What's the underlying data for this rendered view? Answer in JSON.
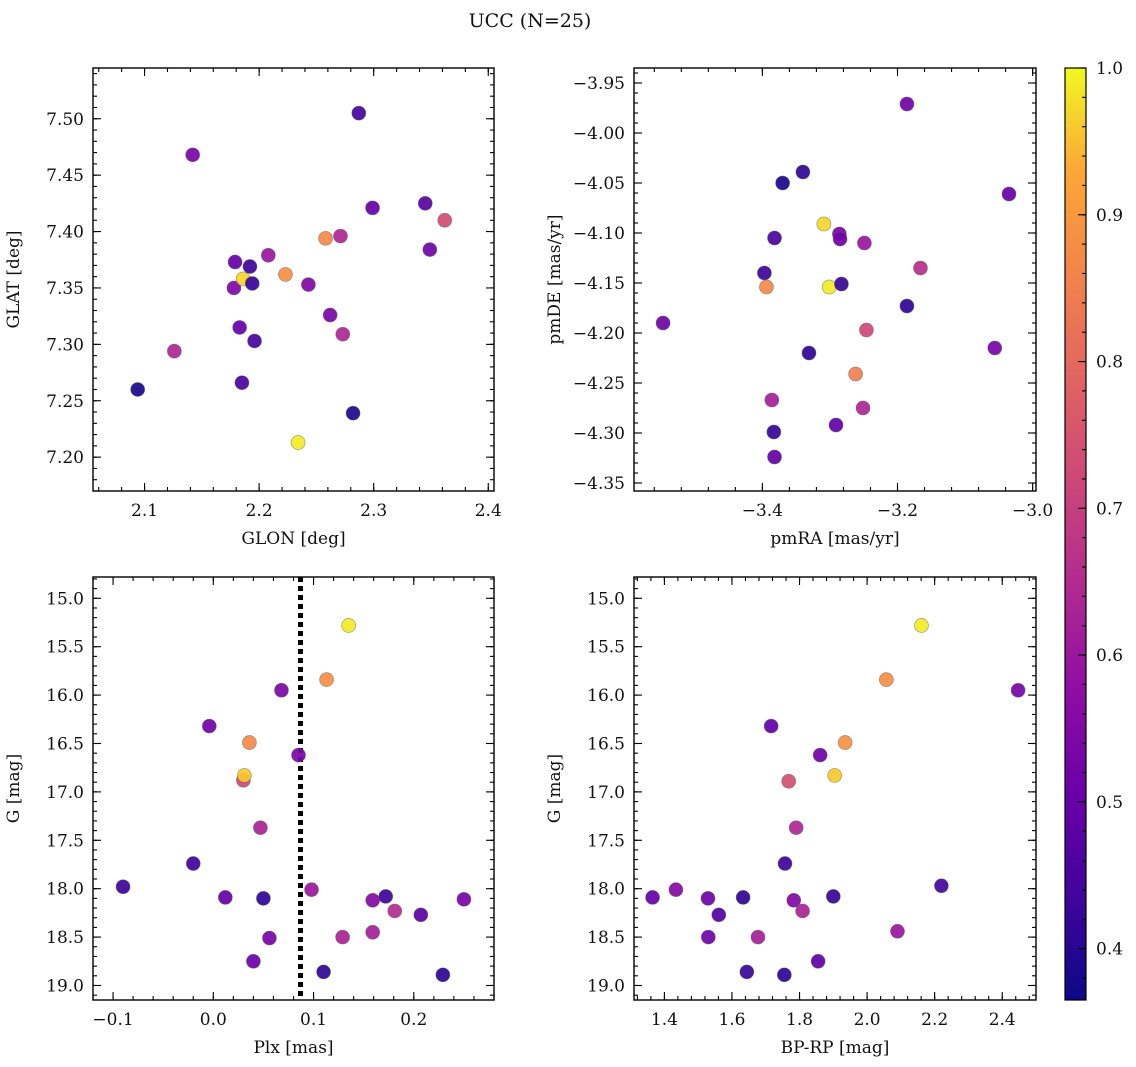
{
  "figure": {
    "title": "UCC (N=25)",
    "colorbar": {
      "colormap": "plasma",
      "range": [
        0.365,
        1.0
      ],
      "ticks": [
        0.4,
        0.5,
        0.6,
        0.7,
        0.8,
        0.9,
        1.0
      ],
      "tick_labels": [
        "0.4",
        "0.5",
        "0.6",
        "0.7",
        "0.8",
        "0.9",
        "1.0"
      ]
    }
  },
  "chart_data": [
    {
      "type": "scatter",
      "panel": "top-left",
      "xlabel": "GLON [deg]",
      "ylabel": "GLAT [deg]",
      "xlim": [
        2.055,
        2.405
      ],
      "ylim": [
        7.17,
        7.545
      ],
      "y_inverted": false,
      "xticks": [
        2.1,
        2.2,
        2.3,
        2.4
      ],
      "xtick_labels": [
        "2.1",
        "2.2",
        "2.3",
        "2.4"
      ],
      "yticks": [
        7.2,
        7.25,
        7.3,
        7.35,
        7.4,
        7.45,
        7.5
      ],
      "ytick_labels": [
        "7.20",
        "7.25",
        "7.30",
        "7.35",
        "7.40",
        "7.45",
        "7.50"
      ],
      "points": [
        {
          "x": 2.094,
          "y": 7.26,
          "c": 0.38
        },
        {
          "x": 2.126,
          "y": 7.294,
          "c": 0.64
        },
        {
          "x": 2.142,
          "y": 7.468,
          "c": 0.53
        },
        {
          "x": 2.178,
          "y": 7.35,
          "c": 0.55
        },
        {
          "x": 2.179,
          "y": 7.373,
          "c": 0.5
        },
        {
          "x": 2.183,
          "y": 7.315,
          "c": 0.5
        },
        {
          "x": 2.185,
          "y": 7.266,
          "c": 0.45
        },
        {
          "x": 2.186,
          "y": 7.358,
          "c": 0.97
        },
        {
          "x": 2.192,
          "y": 7.369,
          "c": 0.43
        },
        {
          "x": 2.194,
          "y": 7.354,
          "c": 0.42
        },
        {
          "x": 2.196,
          "y": 7.303,
          "c": 0.45
        },
        {
          "x": 2.208,
          "y": 7.379,
          "c": 0.6
        },
        {
          "x": 2.223,
          "y": 7.362,
          "c": 0.88
        },
        {
          "x": 2.234,
          "y": 7.213,
          "c": 0.99
        },
        {
          "x": 2.243,
          "y": 7.353,
          "c": 0.55
        },
        {
          "x": 2.258,
          "y": 7.394,
          "c": 0.87
        },
        {
          "x": 2.262,
          "y": 7.326,
          "c": 0.53
        },
        {
          "x": 2.271,
          "y": 7.396,
          "c": 0.64
        },
        {
          "x": 2.273,
          "y": 7.309,
          "c": 0.64
        },
        {
          "x": 2.282,
          "y": 7.239,
          "c": 0.39
        },
        {
          "x": 2.287,
          "y": 7.505,
          "c": 0.44
        },
        {
          "x": 2.299,
          "y": 7.421,
          "c": 0.5
        },
        {
          "x": 2.345,
          "y": 7.425,
          "c": 0.48
        },
        {
          "x": 2.349,
          "y": 7.384,
          "c": 0.52
        },
        {
          "x": 2.362,
          "y": 7.41,
          "c": 0.73
        }
      ]
    },
    {
      "type": "scatter",
      "panel": "top-right",
      "xlabel": "pmRA [mas/yr]",
      "ylabel": "pmDE [mas/yr]",
      "xlim": [
        -3.59,
        -2.995
      ],
      "ylim": [
        -4.358,
        -3.935
      ],
      "y_inverted": false,
      "xticks": [
        -3.4,
        -3.2,
        -3.0
      ],
      "xtick_labels": [
        "−3.4",
        "−3.2",
        "−3.0"
      ],
      "yticks": [
        -4.35,
        -4.3,
        -4.25,
        -4.2,
        -4.15,
        -4.1,
        -4.05,
        -4.0,
        -3.95
      ],
      "ytick_labels": [
        "−4.35",
        "−4.30",
        "−4.25",
        "−4.20",
        "−4.15",
        "−4.10",
        "−4.05",
        "−4.00",
        "−3.95"
      ],
      "points": [
        {
          "x": -3.547,
          "y": -4.19,
          "c": 0.52
        },
        {
          "x": -3.397,
          "y": -4.14,
          "c": 0.43
        },
        {
          "x": -3.394,
          "y": -4.154,
          "c": 0.87
        },
        {
          "x": -3.386,
          "y": -4.267,
          "c": 0.62
        },
        {
          "x": -3.383,
          "y": -4.299,
          "c": 0.42
        },
        {
          "x": -3.382,
          "y": -4.105,
          "c": 0.45
        },
        {
          "x": -3.382,
          "y": -4.324,
          "c": 0.5
        },
        {
          "x": -3.37,
          "y": -4.05,
          "c": 0.38
        },
        {
          "x": -3.34,
          "y": -4.039,
          "c": 0.41
        },
        {
          "x": -3.331,
          "y": -4.22,
          "c": 0.41
        },
        {
          "x": -3.309,
          "y": -4.091,
          "c": 0.97
        },
        {
          "x": -3.301,
          "y": -4.154,
          "c": 0.99
        },
        {
          "x": -3.291,
          "y": -4.292,
          "c": 0.49
        },
        {
          "x": -3.286,
          "y": -4.101,
          "c": 0.53
        },
        {
          "x": -3.285,
          "y": -4.106,
          "c": 0.52
        },
        {
          "x": -3.283,
          "y": -4.151,
          "c": 0.42
        },
        {
          "x": -3.262,
          "y": -4.241,
          "c": 0.85
        },
        {
          "x": -3.251,
          "y": -4.275,
          "c": 0.64
        },
        {
          "x": -3.249,
          "y": -4.11,
          "c": 0.6
        },
        {
          "x": -3.246,
          "y": -4.197,
          "c": 0.72
        },
        {
          "x": -3.186,
          "y": -3.971,
          "c": 0.52
        },
        {
          "x": -3.186,
          "y": -4.173,
          "c": 0.41
        },
        {
          "x": -3.166,
          "y": -4.135,
          "c": 0.66
        },
        {
          "x": -3.056,
          "y": -4.215,
          "c": 0.53
        },
        {
          "x": -3.035,
          "y": -4.061,
          "c": 0.5
        }
      ]
    },
    {
      "type": "scatter",
      "panel": "bottom-left",
      "xlabel": "Plx [mas]",
      "ylabel": "G [mag]",
      "xlim": [
        -0.12,
        0.28
      ],
      "ylim": [
        19.15,
        14.78
      ],
      "y_inverted": true,
      "xticks": [
        -0.1,
        0.0,
        0.1,
        0.2
      ],
      "xtick_labels": [
        "−0.1",
        "0.0",
        "0.1",
        "0.2"
      ],
      "yticks": [
        15.0,
        15.5,
        16.0,
        16.5,
        17.0,
        17.5,
        18.0,
        18.5,
        19.0
      ],
      "ytick_labels": [
        "15.0",
        "15.5",
        "16.0",
        "16.5",
        "17.0",
        "17.5",
        "18.0",
        "18.5",
        "19.0"
      ],
      "vline": {
        "x": 0.087,
        "style": "dotted",
        "color": "#000000"
      },
      "points": [
        {
          "x": -0.09,
          "y": 17.98,
          "c": 0.43
        },
        {
          "x": -0.02,
          "y": 17.74,
          "c": 0.43
        },
        {
          "x": -0.004,
          "y": 16.32,
          "c": 0.52
        },
        {
          "x": 0.012,
          "y": 18.09,
          "c": 0.5
        },
        {
          "x": 0.03,
          "y": 16.88,
          "c": 0.72
        },
        {
          "x": 0.031,
          "y": 16.83,
          "c": 0.96
        },
        {
          "x": 0.036,
          "y": 16.49,
          "c": 0.87
        },
        {
          "x": 0.04,
          "y": 18.75,
          "c": 0.51
        },
        {
          "x": 0.047,
          "y": 17.37,
          "c": 0.63
        },
        {
          "x": 0.05,
          "y": 18.1,
          "c": 0.41
        },
        {
          "x": 0.056,
          "y": 18.51,
          "c": 0.53
        },
        {
          "x": 0.068,
          "y": 15.95,
          "c": 0.54
        },
        {
          "x": 0.085,
          "y": 16.62,
          "c": 0.54
        },
        {
          "x": 0.098,
          "y": 18.01,
          "c": 0.6
        },
        {
          "x": 0.11,
          "y": 18.86,
          "c": 0.41
        },
        {
          "x": 0.113,
          "y": 15.84,
          "c": 0.88
        },
        {
          "x": 0.129,
          "y": 18.5,
          "c": 0.63
        },
        {
          "x": 0.135,
          "y": 15.28,
          "c": 0.99
        },
        {
          "x": 0.159,
          "y": 18.12,
          "c": 0.56
        },
        {
          "x": 0.159,
          "y": 18.45,
          "c": 0.62
        },
        {
          "x": 0.172,
          "y": 18.08,
          "c": 0.43
        },
        {
          "x": 0.181,
          "y": 18.23,
          "c": 0.65
        },
        {
          "x": 0.207,
          "y": 18.27,
          "c": 0.48
        },
        {
          "x": 0.229,
          "y": 18.89,
          "c": 0.41
        },
        {
          "x": 0.25,
          "y": 18.11,
          "c": 0.53
        }
      ]
    },
    {
      "type": "scatter",
      "panel": "bottom-right",
      "xlabel": "BP-RP [mag]",
      "ylabel": "G [mag]",
      "xlim": [
        1.31,
        2.5
      ],
      "ylim": [
        19.15,
        14.78
      ],
      "y_inverted": true,
      "xticks": [
        1.4,
        1.6,
        1.8,
        2.0,
        2.2,
        2.4
      ],
      "xtick_labels": [
        "1.4",
        "1.6",
        "1.8",
        "2.0",
        "2.2",
        "2.4"
      ],
      "yticks": [
        15.0,
        15.5,
        16.0,
        16.5,
        17.0,
        17.5,
        18.0,
        18.5,
        19.0
      ],
      "ytick_labels": [
        "15.0",
        "15.5",
        "16.0",
        "16.5",
        "17.0",
        "17.5",
        "18.0",
        "18.5",
        "19.0"
      ],
      "points": [
        {
          "x": 1.365,
          "y": 18.09,
          "c": 0.5
        },
        {
          "x": 1.434,
          "y": 18.01,
          "c": 0.56
        },
        {
          "x": 1.529,
          "y": 18.1,
          "c": 0.52
        },
        {
          "x": 1.53,
          "y": 18.5,
          "c": 0.52
        },
        {
          "x": 1.561,
          "y": 18.27,
          "c": 0.47
        },
        {
          "x": 1.633,
          "y": 18.09,
          "c": 0.41
        },
        {
          "x": 1.644,
          "y": 18.86,
          "c": 0.42
        },
        {
          "x": 1.677,
          "y": 18.5,
          "c": 0.62
        },
        {
          "x": 1.716,
          "y": 16.32,
          "c": 0.49
        },
        {
          "x": 1.755,
          "y": 18.89,
          "c": 0.41
        },
        {
          "x": 1.757,
          "y": 17.74,
          "c": 0.43
        },
        {
          "x": 1.768,
          "y": 16.89,
          "c": 0.74
        },
        {
          "x": 1.783,
          "y": 18.12,
          "c": 0.55
        },
        {
          "x": 1.79,
          "y": 17.37,
          "c": 0.64
        },
        {
          "x": 1.809,
          "y": 18.23,
          "c": 0.63
        },
        {
          "x": 1.855,
          "y": 18.75,
          "c": 0.49
        },
        {
          "x": 1.861,
          "y": 16.62,
          "c": 0.52
        },
        {
          "x": 1.9,
          "y": 18.08,
          "c": 0.42
        },
        {
          "x": 1.904,
          "y": 16.83,
          "c": 0.96
        },
        {
          "x": 1.935,
          "y": 16.49,
          "c": 0.89
        },
        {
          "x": 2.057,
          "y": 15.84,
          "c": 0.88
        },
        {
          "x": 2.09,
          "y": 18.44,
          "c": 0.6
        },
        {
          "x": 2.161,
          "y": 15.28,
          "c": 0.99
        },
        {
          "x": 2.22,
          "y": 17.97,
          "c": 0.44
        },
        {
          "x": 2.447,
          "y": 15.95,
          "c": 0.53
        }
      ]
    }
  ]
}
